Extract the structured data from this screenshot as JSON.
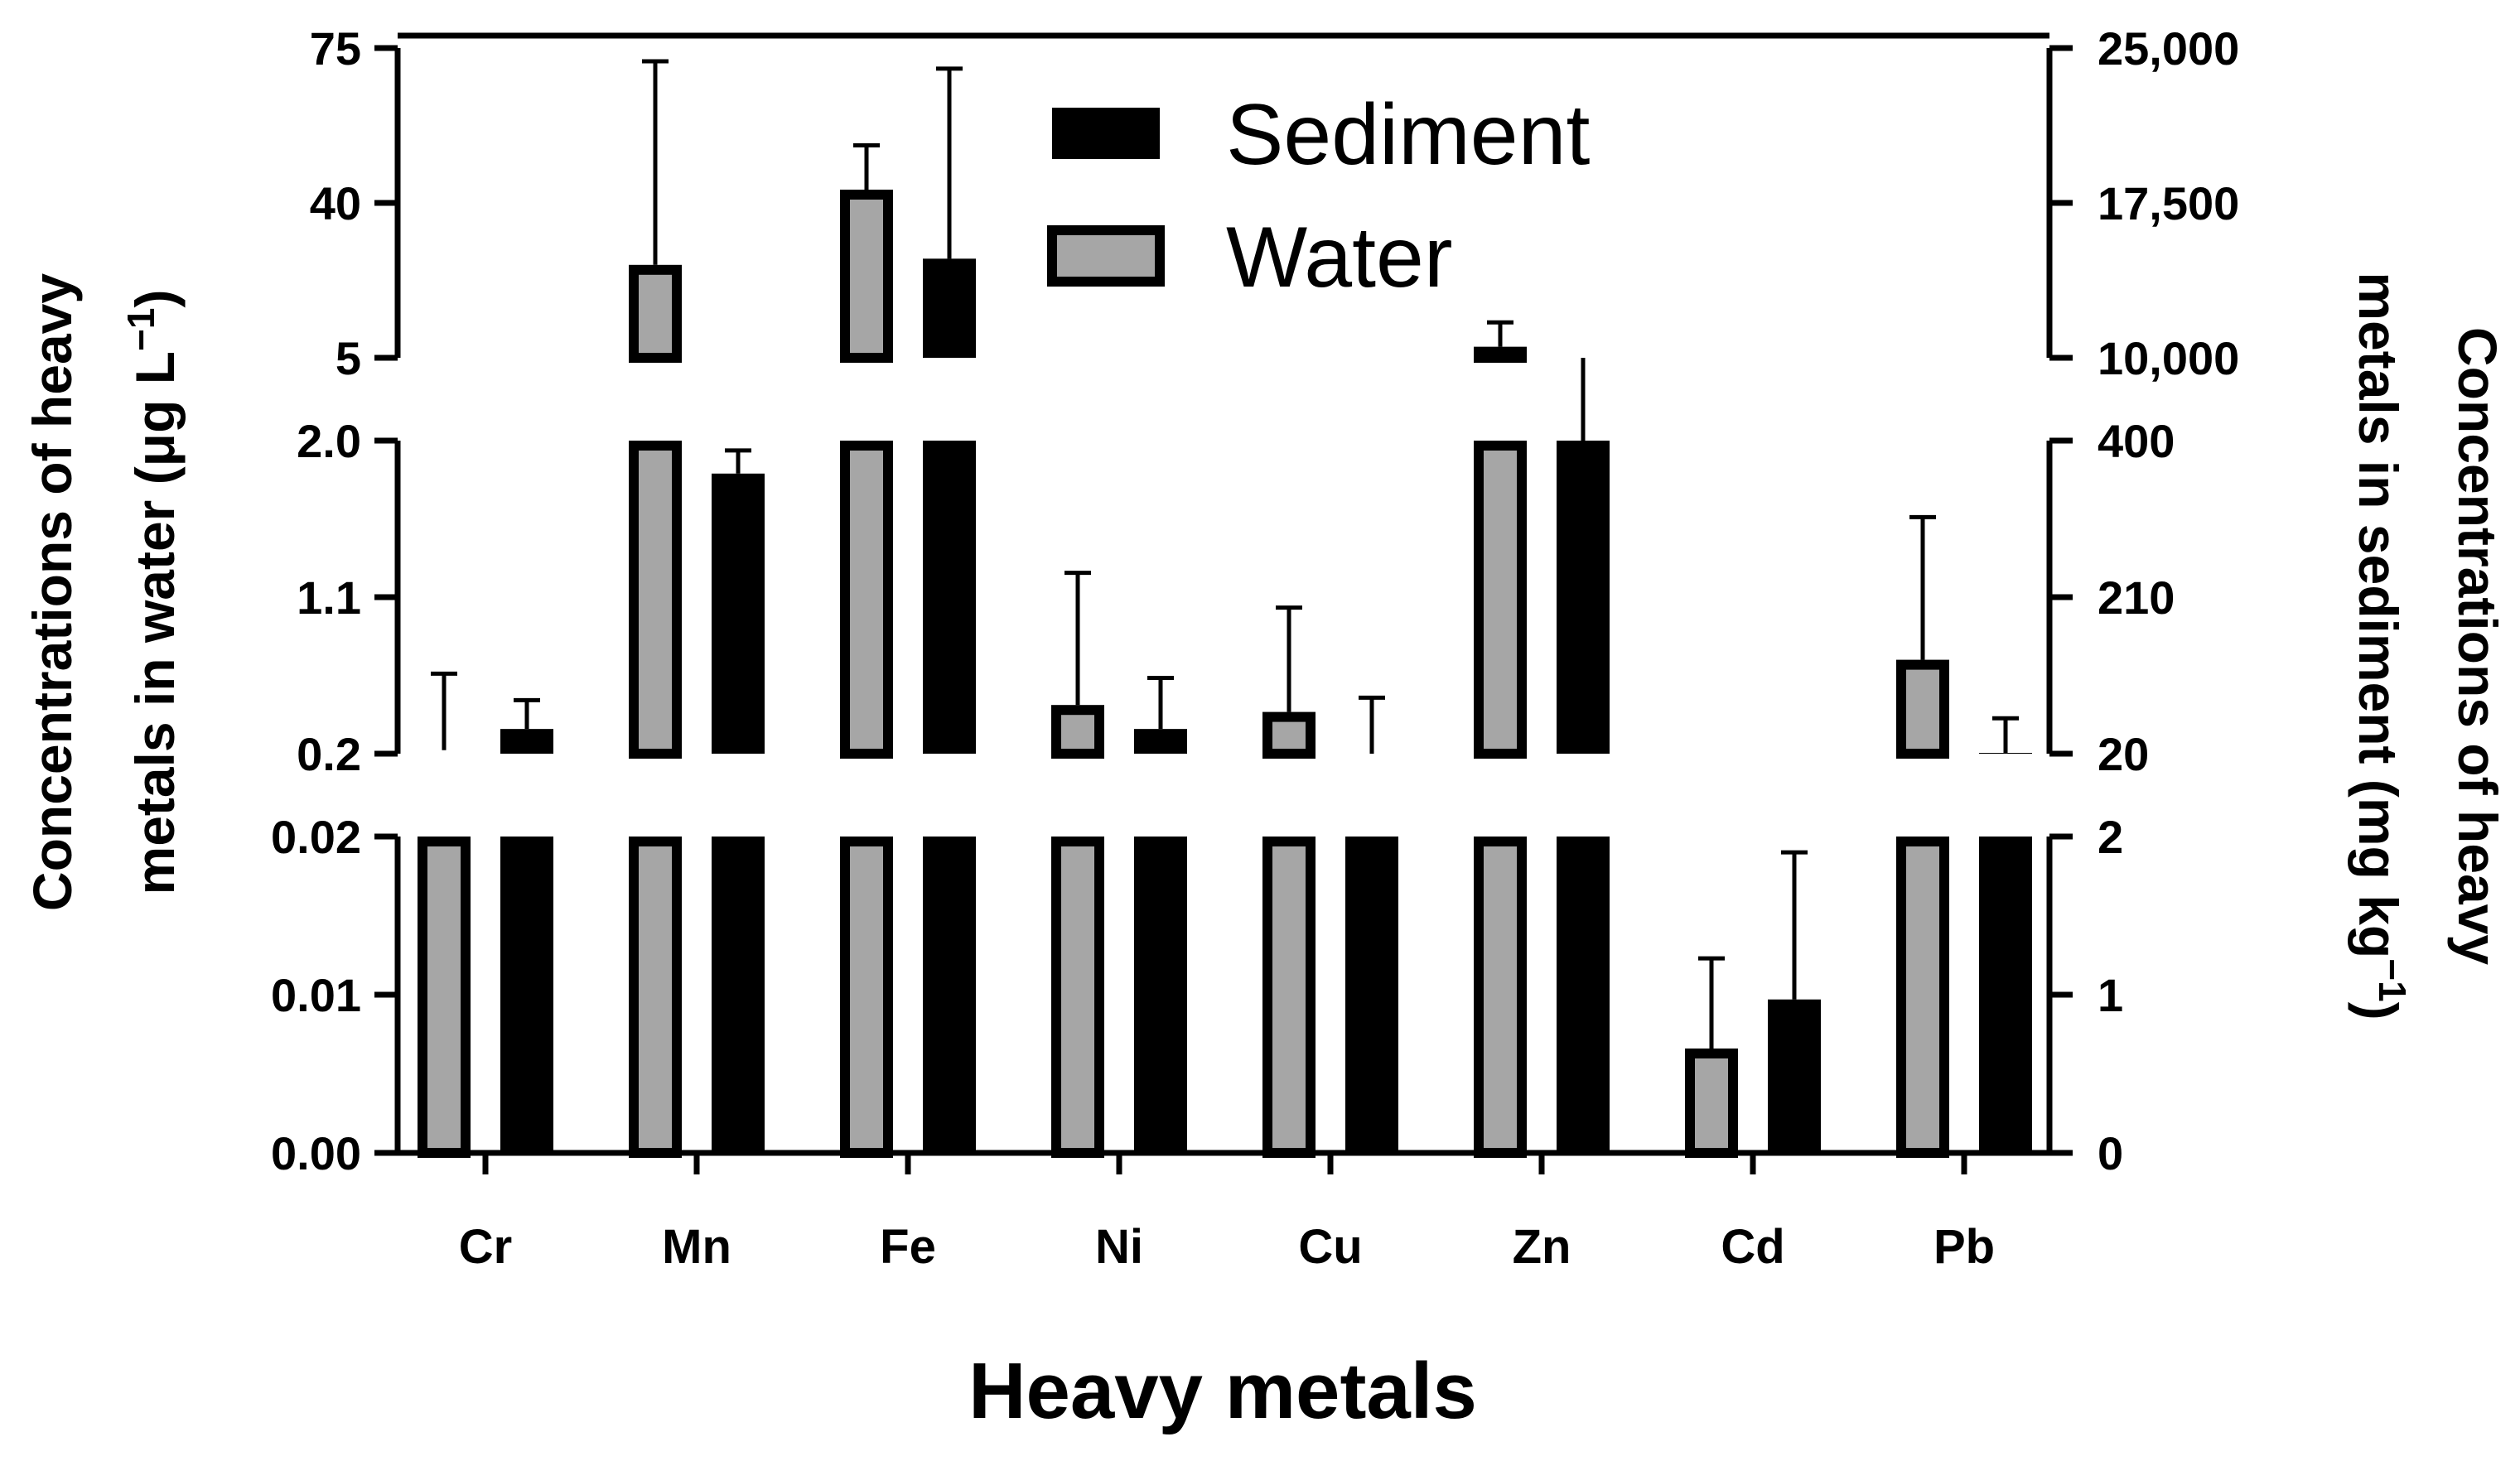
{
  "chart_data": {
    "type": "bar",
    "xlabel": "Heavy metals",
    "ylabel_left": {
      "line1": "Concentrations of heavy",
      "line2": "metals in water (μg L",
      "sup": "−1",
      "end": ")"
    },
    "ylabel_right": {
      "line1": "Concentrations of heavy",
      "line2": "metals in sediment (mg kg",
      "sup": "−1",
      "end": ")"
    },
    "categories": [
      "Cr",
      "Mn",
      "Fe",
      "Ni",
      "Cu",
      "Zn",
      "Cd",
      "Pb"
    ],
    "legend": [
      "Sediment",
      "Water"
    ],
    "colors": {
      "Sediment": "#000000",
      "Water": "#a6a6a6"
    },
    "axis_breaks": {
      "left": {
        "segments": [
          [
            0,
            0.02
          ],
          [
            0.2,
            2.0
          ],
          [
            5,
            75
          ]
        ],
        "ticks": [
          [
            "0.00",
            "0.01",
            "0.02"
          ],
          [
            "0.2",
            "1.1",
            "2.0"
          ],
          [
            "5",
            "40",
            "75"
          ]
        ]
      },
      "right": {
        "segments": [
          [
            0,
            2
          ],
          [
            20,
            400
          ],
          [
            10000,
            25000
          ]
        ],
        "ticks": [
          [
            "0",
            "1",
            "2"
          ],
          [
            "20",
            "210",
            "400"
          ],
          [
            "10,000",
            "17,500",
            "25,000"
          ]
        ]
      }
    },
    "series": [
      {
        "name": "Water",
        "axis": "left",
        "values": [
          0.22,
          26.0,
          43.0,
          0.48,
          0.44,
          7.5,
          0.0066,
          0.74
        ],
        "error_upper": [
          0.66,
          72.0,
          53.0,
          1.24,
          1.04,
          13.0,
          0.0123,
          1.56
        ]
      },
      {
        "name": "Sediment",
        "axis": "right",
        "values": [
          50,
          360,
          14800,
          50,
          20,
          10000,
          0.97,
          21
        ],
        "error_upper": [
          85,
          388,
          24000,
          112,
          88,
          108,
          1.9,
          63
        ]
      }
    ]
  }
}
